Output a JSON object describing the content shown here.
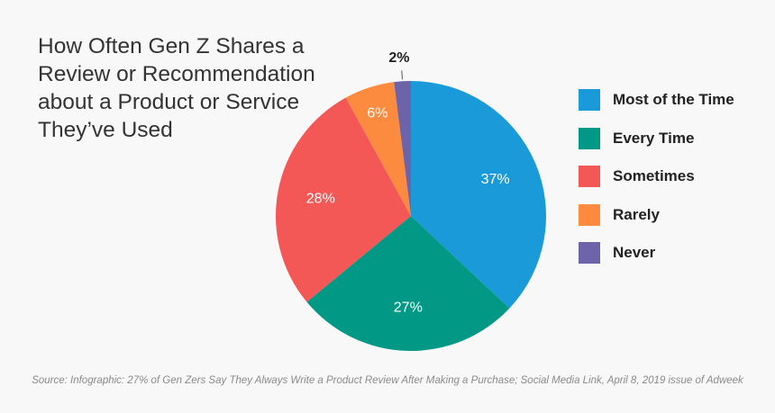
{
  "chart_data": {
    "type": "pie",
    "title": "How Often Gen Z Shares a Review or Recommendation about a Product or Service They’ve Used",
    "title_lines": [
      "How Often Gen Z Shares a",
      "Review or Recommendation",
      "about a Product or Service",
      "They’ve Used"
    ],
    "categories": [
      "Most of the Time",
      "Every Time",
      "Sometimes",
      "Rarely",
      "Never"
    ],
    "values": [
      37,
      27,
      28,
      6,
      2
    ],
    "labels": [
      "37%",
      "27%",
      "28%",
      "6%",
      "2%"
    ],
    "colors": [
      "#1a9ad9",
      "#019985",
      "#f35756",
      "#fd8b3f",
      "#6c63a9"
    ],
    "legend_position": "right",
    "source": "Source: Infographic: 27% of Gen Zers Say They Always Write a Product Review After Making a Purchase; Social Media Link, April 8, 2019 issue of Adweek"
  }
}
